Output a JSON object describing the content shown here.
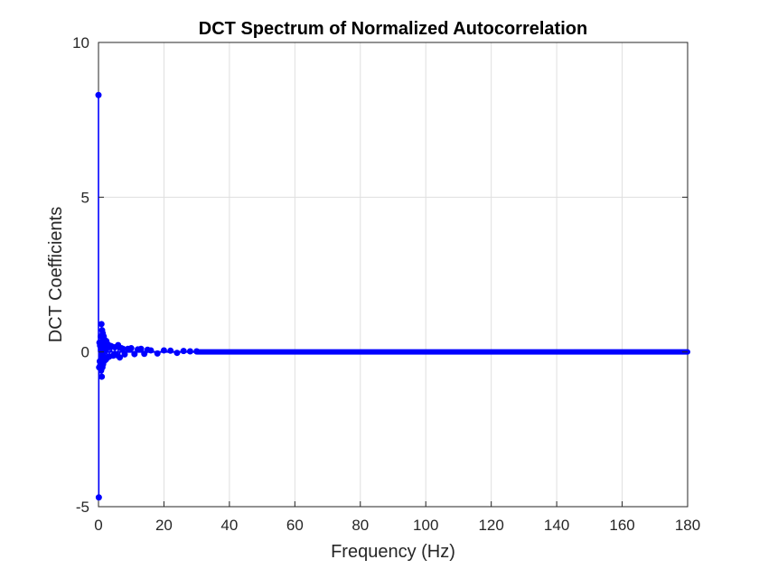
{
  "chart_data": {
    "type": "stem",
    "title": "DCT Spectrum of Normalized Autocorrelation",
    "xlabel": "Frequency (Hz)",
    "ylabel": "DCT Coefficients",
    "xlim": [
      0,
      180
    ],
    "ylim": [
      -5,
      10
    ],
    "xticks": [
      "0",
      "20",
      "40",
      "60",
      "80",
      "100",
      "120",
      "140",
      "160",
      "180"
    ],
    "yticks": [
      "-5",
      "0",
      "5",
      "10"
    ],
    "grid": true,
    "legend": "none",
    "series": [
      {
        "color": "#0000ff",
        "marker": "filled-circle",
        "x": [
          0.0,
          0.1,
          0.2,
          0.3,
          0.4,
          0.5,
          0.6,
          0.7,
          0.8,
          0.9,
          1.0,
          1.1,
          1.2,
          1.3,
          1.4,
          1.5,
          1.6,
          1.7,
          1.8,
          1.9,
          2.0,
          2.2,
          2.4,
          2.6,
          2.8,
          3.0,
          3.3,
          3.6,
          4.0,
          4.5,
          5.0,
          5.5,
          6.0,
          6.5,
          7.0,
          7.5,
          8.0,
          9.0,
          10.0,
          11.0,
          12.0,
          13.0,
          14.0,
          15.0,
          16.0,
          18.0,
          20.0,
          22.0,
          24.0,
          26.0,
          28.0,
          30.0
        ],
        "y": [
          8.3,
          -4.7,
          -0.5,
          0.3,
          -0.3,
          0.2,
          -0.4,
          0.5,
          -0.6,
          0.9,
          -0.8,
          0.7,
          -0.5,
          0.6,
          -0.4,
          0.3,
          0.5,
          -0.3,
          0.4,
          -0.2,
          0.3,
          -0.25,
          0.35,
          -0.2,
          0.25,
          0.15,
          -0.15,
          0.2,
          0.18,
          -0.12,
          0.15,
          -0.1,
          0.22,
          -0.18,
          0.12,
          0.1,
          -0.08,
          0.1,
          0.12,
          -0.07,
          0.08,
          0.1,
          -0.06,
          0.07,
          0.05,
          -0.05,
          0.05,
          0.04,
          -0.03,
          0.03,
          0.02,
          0.02
        ]
      }
    ],
    "baseline_band": {
      "from": 30,
      "to": 180,
      "value": 0
    }
  }
}
